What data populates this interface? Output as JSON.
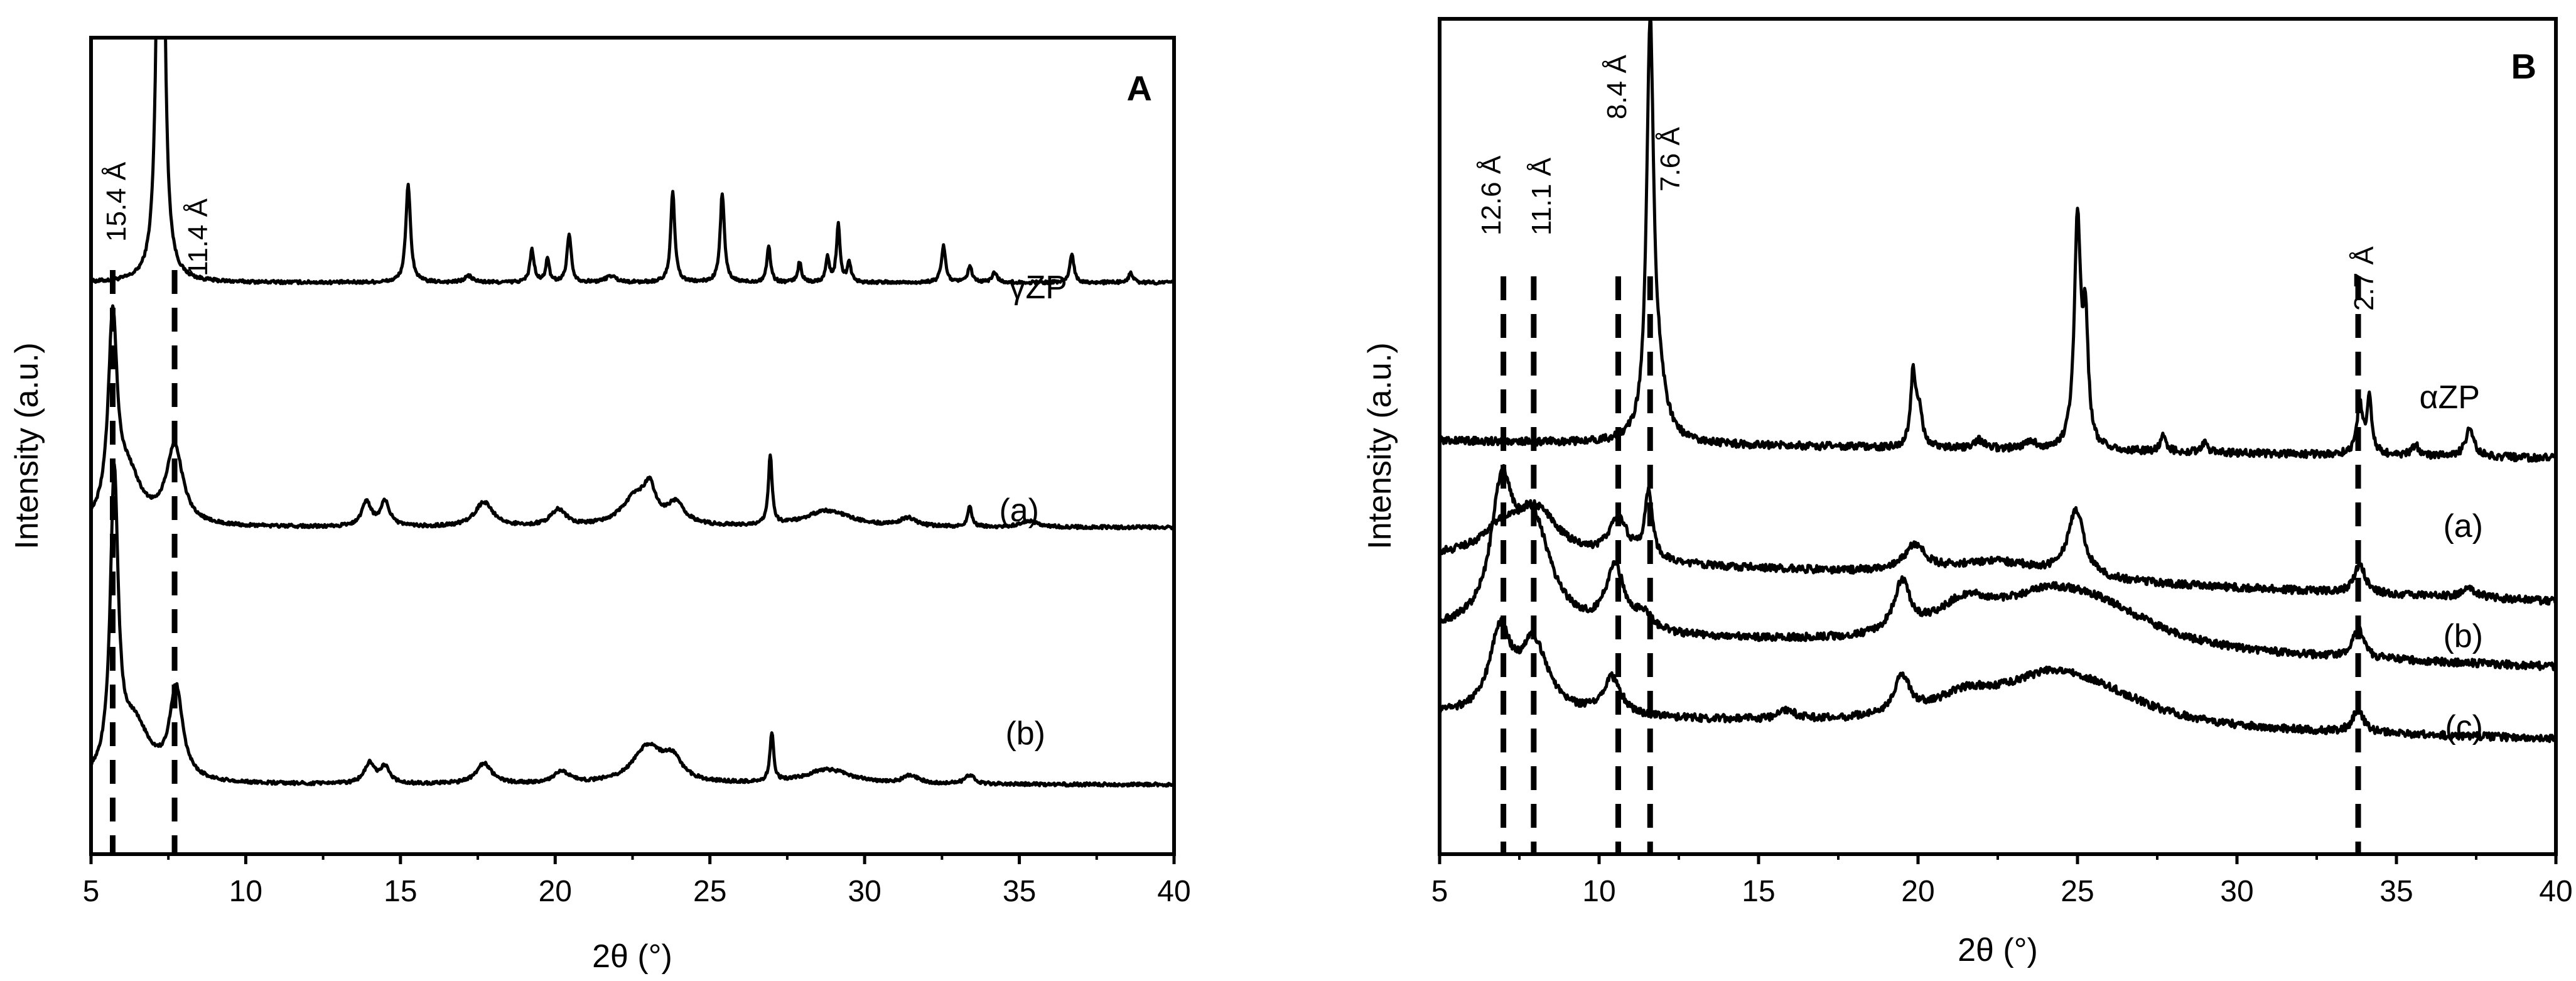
{
  "chart_data": [
    {
      "panel": "A",
      "type": "line",
      "xlabel": "2θ (°)",
      "ylabel": "Intensity (a.u.)",
      "xlim": [
        5,
        40
      ],
      "xticks": [
        5,
        10,
        15,
        20,
        25,
        30,
        35,
        40
      ],
      "ylim": [
        0,
        1
      ],
      "yticks_shown": false,
      "reference_lines": [
        {
          "x": 5.7,
          "label": "15.4 Å"
        },
        {
          "x": 7.7,
          "label": "11.4 Å"
        }
      ],
      "series": [
        {
          "name": "γZP",
          "baseline": 0.7,
          "peaks": [
            {
              "x": 7.25,
              "h": 1.2,
              "w": 0.09
            },
            {
              "x": 15.25,
              "h": 0.12,
              "w": 0.09
            },
            {
              "x": 17.2,
              "h": 0.008,
              "w": 0.15
            },
            {
              "x": 19.25,
              "h": 0.04,
              "w": 0.08
            },
            {
              "x": 19.75,
              "h": 0.028,
              "w": 0.07
            },
            {
              "x": 20.45,
              "h": 0.06,
              "w": 0.08
            },
            {
              "x": 21.8,
              "h": 0.008,
              "w": 0.2
            },
            {
              "x": 23.8,
              "h": 0.11,
              "w": 0.08
            },
            {
              "x": 25.4,
              "h": 0.11,
              "w": 0.08
            },
            {
              "x": 26.9,
              "h": 0.045,
              "w": 0.07
            },
            {
              "x": 27.9,
              "h": 0.025,
              "w": 0.07
            },
            {
              "x": 28.8,
              "h": 0.03,
              "w": 0.07
            },
            {
              "x": 29.15,
              "h": 0.07,
              "w": 0.07
            },
            {
              "x": 29.5,
              "h": 0.025,
              "w": 0.07
            },
            {
              "x": 32.55,
              "h": 0.045,
              "w": 0.08
            },
            {
              "x": 33.4,
              "h": 0.02,
              "w": 0.08
            },
            {
              "x": 34.2,
              "h": 0.012,
              "w": 0.1
            },
            {
              "x": 36.7,
              "h": 0.035,
              "w": 0.08
            },
            {
              "x": 38.6,
              "h": 0.012,
              "w": 0.08
            }
          ]
        },
        {
          "name": "(a)",
          "baseline": 0.4,
          "peaks": [
            {
              "x": 5.7,
              "h": 0.24,
              "w": 0.17
            },
            {
              "x": 6.2,
              "h": 0.06,
              "w": 0.5
            },
            {
              "x": 7.7,
              "h": 0.095,
              "w": 0.32
            },
            {
              "x": 13.9,
              "h": 0.03,
              "w": 0.18
            },
            {
              "x": 14.5,
              "h": 0.03,
              "w": 0.18
            },
            {
              "x": 17.7,
              "h": 0.03,
              "w": 0.35
            },
            {
              "x": 20.1,
              "h": 0.02,
              "w": 0.3
            },
            {
              "x": 22.6,
              "h": 0.035,
              "w": 0.55
            },
            {
              "x": 23.05,
              "h": 0.035,
              "w": 0.22
            },
            {
              "x": 23.9,
              "h": 0.025,
              "w": 0.35
            },
            {
              "x": 26.95,
              "h": 0.085,
              "w": 0.07
            },
            {
              "x": 28.8,
              "h": 0.02,
              "w": 0.9
            },
            {
              "x": 31.4,
              "h": 0.01,
              "w": 0.3
            },
            {
              "x": 33.4,
              "h": 0.025,
              "w": 0.08
            },
            {
              "x": 35.3,
              "h": 0.008,
              "w": 0.3
            }
          ]
        },
        {
          "name": "(b)",
          "baseline": 0.085,
          "peaks": [
            {
              "x": 5.75,
              "h": 0.36,
              "w": 0.15
            },
            {
              "x": 6.4,
              "h": 0.07,
              "w": 0.6
            },
            {
              "x": 7.75,
              "h": 0.11,
              "w": 0.25
            },
            {
              "x": 14.0,
              "h": 0.025,
              "w": 0.2
            },
            {
              "x": 14.5,
              "h": 0.02,
              "w": 0.18
            },
            {
              "x": 17.7,
              "h": 0.025,
              "w": 0.3
            },
            {
              "x": 20.2,
              "h": 0.015,
              "w": 0.3
            },
            {
              "x": 23.0,
              "h": 0.045,
              "w": 0.6
            },
            {
              "x": 23.8,
              "h": 0.025,
              "w": 0.35
            },
            {
              "x": 27.0,
              "h": 0.06,
              "w": 0.07
            },
            {
              "x": 28.8,
              "h": 0.018,
              "w": 0.9
            },
            {
              "x": 31.5,
              "h": 0.01,
              "w": 0.3
            },
            {
              "x": 33.4,
              "h": 0.01,
              "w": 0.2
            }
          ]
        }
      ]
    },
    {
      "panel": "B",
      "type": "line",
      "xlabel": "2θ (°)",
      "ylabel": "Intensity (a.u.)",
      "xlim": [
        5,
        40
      ],
      "xticks": [
        5,
        10,
        15,
        20,
        25,
        30,
        35,
        40
      ],
      "ylim": [
        0,
        1
      ],
      "yticks_shown": false,
      "reference_lines": [
        {
          "x": 7.0,
          "label": "12.6 Å"
        },
        {
          "x": 7.95,
          "label": "11.1 Å"
        },
        {
          "x": 10.6,
          "label": "8.4 Å"
        },
        {
          "x": 11.6,
          "label": "7.6 Å"
        },
        {
          "x": 33.8,
          "label": "2.7 Å"
        }
      ],
      "series": [
        {
          "name": "αZP",
          "baseline": 0.495,
          "slope": -0.0006,
          "peaks": [
            {
              "x": 11.6,
              "h": 0.48,
              "w": 0.13
            },
            {
              "x": 11.85,
              "h": 0.06,
              "w": 0.3
            },
            {
              "x": 19.85,
              "h": 0.09,
              "w": 0.1
            },
            {
              "x": 20.05,
              "h": 0.04,
              "w": 0.1
            },
            {
              "x": 21.9,
              "h": 0.01,
              "w": 0.2
            },
            {
              "x": 23.5,
              "h": 0.01,
              "w": 0.2
            },
            {
              "x": 25.0,
              "h": 0.27,
              "w": 0.12
            },
            {
              "x": 25.25,
              "h": 0.14,
              "w": 0.1
            },
            {
              "x": 27.7,
              "h": 0.02,
              "w": 0.1
            },
            {
              "x": 29.0,
              "h": 0.012,
              "w": 0.1
            },
            {
              "x": 33.85,
              "h": 0.06,
              "w": 0.1
            },
            {
              "x": 34.15,
              "h": 0.065,
              "w": 0.1
            },
            {
              "x": 35.6,
              "h": 0.012,
              "w": 0.15
            },
            {
              "x": 37.3,
              "h": 0.035,
              "w": 0.15
            }
          ]
        },
        {
          "name": "(a)",
          "baseline": 0.355,
          "slope": -0.0015,
          "peaks": [
            {
              "x": 6.9,
              "h": 0.025,
              "w": 0.7
            },
            {
              "x": 8.0,
              "h": 0.06,
              "w": 0.9
            },
            {
              "x": 10.6,
              "h": 0.05,
              "w": 0.35
            },
            {
              "x": 11.55,
              "h": 0.08,
              "w": 0.15
            },
            {
              "x": 19.9,
              "h": 0.03,
              "w": 0.4
            },
            {
              "x": 22.5,
              "h": 0.02,
              "w": 2.0
            },
            {
              "x": 24.95,
              "h": 0.08,
              "w": 0.3
            },
            {
              "x": 33.85,
              "h": 0.035,
              "w": 0.2
            },
            {
              "x": 37.3,
              "h": 0.01,
              "w": 0.3
            }
          ]
        },
        {
          "name": "(b)",
          "baseline": 0.265,
          "slope": -0.0012,
          "peaks": [
            {
              "x": 6.95,
              "h": 0.15,
              "w": 0.4
            },
            {
              "x": 7.9,
              "h": 0.13,
              "w": 0.7
            },
            {
              "x": 10.5,
              "h": 0.075,
              "w": 0.35
            },
            {
              "x": 11.4,
              "h": 0.02,
              "w": 0.3
            },
            {
              "x": 19.5,
              "h": 0.06,
              "w": 0.3
            },
            {
              "x": 21.5,
              "h": 0.04,
              "w": 1.2
            },
            {
              "x": 24.2,
              "h": 0.055,
              "w": 2.0
            },
            {
              "x": 26.0,
              "h": 0.03,
              "w": 2.0
            },
            {
              "x": 33.8,
              "h": 0.035,
              "w": 0.2
            }
          ]
        },
        {
          "name": "(c)",
          "baseline": 0.165,
          "slope": -0.0008,
          "peaks": [
            {
              "x": 6.9,
              "h": 0.095,
              "w": 0.4
            },
            {
              "x": 7.95,
              "h": 0.085,
              "w": 0.55
            },
            {
              "x": 10.4,
              "h": 0.045,
              "w": 0.35
            },
            {
              "x": 15.9,
              "h": 0.01,
              "w": 0.3
            },
            {
              "x": 19.5,
              "h": 0.045,
              "w": 0.3
            },
            {
              "x": 21.5,
              "h": 0.025,
              "w": 1.2
            },
            {
              "x": 24.2,
              "h": 0.055,
              "w": 2.0
            },
            {
              "x": 26.0,
              "h": 0.02,
              "w": 2.0
            },
            {
              "x": 33.8,
              "h": 0.028,
              "w": 0.2
            }
          ]
        }
      ]
    }
  ]
}
